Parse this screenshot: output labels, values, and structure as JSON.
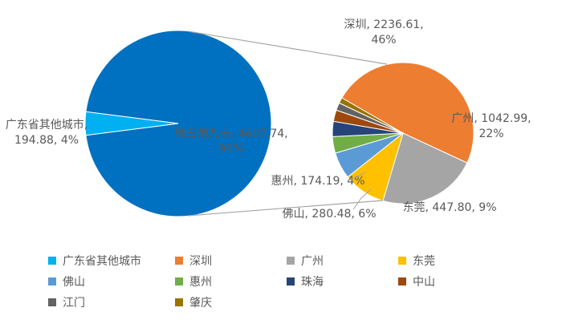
{
  "chart_data": {
    "type": "pie",
    "subtype": "pie-of-pie",
    "main_pie": {
      "slices": [
        {
          "name": "珠三角九市",
          "value": 4607.74,
          "percent": "96%",
          "color": "#0070C0",
          "label_line1": "珠三角九市, 4607.74,",
          "label_line2": "96%"
        },
        {
          "name": "广东省其他城市",
          "value": 194.88,
          "percent": "4%",
          "color": "#00B0F0",
          "label_line1": "广东省其他城市,",
          "label_line2": "194.88, 4%"
        }
      ]
    },
    "secondary_pie": {
      "slices": [
        {
          "name": "深圳",
          "value": 2236.61,
          "percent": "46%",
          "color": "#ED7D31",
          "label_line1": "深圳, 2236.61,",
          "label_line2": "46%"
        },
        {
          "name": "广州",
          "value": 1042.99,
          "percent": "22%",
          "color": "#A5A5A5",
          "label_line1": "广州, 1042.99,",
          "label_line2": "22%"
        },
        {
          "name": "东莞",
          "value": 447.8,
          "percent": "9%",
          "color": "#FFC000",
          "label_line1": "东莞, 447.80, 9%"
        },
        {
          "name": "佛山",
          "value": 280.48,
          "percent": "6%",
          "color": "#5B9BD5",
          "label_line1": "佛山, 280.48, 6%"
        },
        {
          "name": "惠州",
          "value": 174.19,
          "percent": "4%",
          "color": "#70AD47",
          "label_line1": "惠州, 174.19, 4%"
        },
        {
          "name": "珠海",
          "value": 160,
          "color": "#264478"
        },
        {
          "name": "中山",
          "value": 120,
          "color": "#9E480E"
        },
        {
          "name": "江门",
          "value": 80,
          "color": "#636363"
        },
        {
          "name": "肇庆",
          "value": 60,
          "color": "#997300"
        }
      ]
    },
    "legend": [
      {
        "label": "广东省其他城市",
        "color": "#00B0F0"
      },
      {
        "label": "深圳",
        "color": "#ED7D31"
      },
      {
        "label": "广州",
        "color": "#A5A5A5"
      },
      {
        "label": "东莞",
        "color": "#FFC000"
      },
      {
        "label": "佛山",
        "color": "#5B9BD5"
      },
      {
        "label": "惠州",
        "color": "#70AD47"
      },
      {
        "label": "珠海",
        "color": "#264478"
      },
      {
        "label": "中山",
        "color": "#9E480E"
      },
      {
        "label": "江门",
        "color": "#636363"
      },
      {
        "label": "肇庆",
        "color": "#997300"
      }
    ],
    "legend_position": "bottom",
    "connector_color": "#A6A6A6"
  }
}
